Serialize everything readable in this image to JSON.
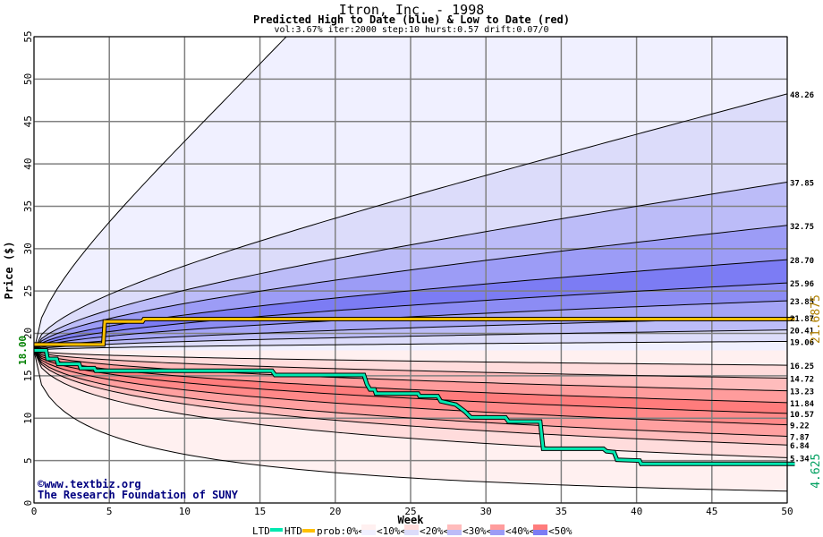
{
  "chart_data": {
    "type": "area",
    "title": "Itron, Inc. - 1998",
    "subtitle": "Predicted High to Date (blue) &  Low to Date (red)",
    "params": "vol:3.67% iter:2000 step:10 hurst:0.57 drift:0.07/0",
    "xlabel": "Week",
    "ylabel": "Price ($)",
    "xlim": [
      0,
      50.5
    ],
    "ylim": [
      0,
      55
    ],
    "xticks": [
      "0",
      "5",
      "10",
      "15",
      "20",
      "25",
      "30",
      "35",
      "40",
      "45",
      "50"
    ],
    "yticks": [
      "0",
      "5",
      "10",
      "15",
      "20",
      "25",
      "30",
      "35",
      "40",
      "45",
      "50",
      "55"
    ],
    "start_price": "18.00",
    "upper_band_end_values": [
      48.26,
      37.85,
      32.75,
      28.7,
      25.96,
      23.85,
      21.87,
      20.41,
      19.06
    ],
    "upper_band_labels": [
      "48.26",
      "37.85",
      "32.75",
      "28.70",
      "25.96",
      "23.85",
      "21.87",
      "20.41",
      "19.06"
    ],
    "lower_band_end_values": [
      16.25,
      14.72,
      13.23,
      11.84,
      10.57,
      9.22,
      7.87,
      6.84,
      5.34
    ],
    "lower_band_labels": [
      "16.25",
      "14.72",
      "13.23",
      "11.84",
      "10.57",
      "9.22",
      "7.87",
      "6.84",
      "5.34"
    ],
    "htd": {
      "label": "HTD",
      "final": "21.6875",
      "color": "#ffc000",
      "points": [
        [
          0,
          18.7
        ],
        [
          4.6,
          18.7
        ],
        [
          4.7,
          21.4
        ],
        [
          7.2,
          21.4
        ],
        [
          7.3,
          21.6875
        ],
        [
          50.5,
          21.6875
        ]
      ]
    },
    "ltd": {
      "label": "LTD",
      "final": "4.625",
      "color": "#00e8b0",
      "points": [
        [
          0,
          18
        ],
        [
          0.8,
          18
        ],
        [
          0.9,
          17
        ],
        [
          1.5,
          17
        ],
        [
          1.6,
          16.4
        ],
        [
          3,
          16.4
        ],
        [
          3.1,
          15.9
        ],
        [
          4,
          15.9
        ],
        [
          4.1,
          15.6
        ],
        [
          15.8,
          15.6
        ],
        [
          16,
          15.1
        ],
        [
          21.9,
          15.1
        ],
        [
          22.1,
          14
        ],
        [
          22.3,
          13.4
        ],
        [
          22.6,
          13.4
        ],
        [
          22.7,
          12.9
        ],
        [
          25.5,
          12.9
        ],
        [
          25.6,
          12.6
        ],
        [
          26.8,
          12.6
        ],
        [
          27,
          12
        ],
        [
          28,
          11.6
        ],
        [
          28.6,
          10.8
        ],
        [
          29,
          10.1
        ],
        [
          31.3,
          10.1
        ],
        [
          31.5,
          9.6
        ],
        [
          33.6,
          9.6
        ],
        [
          33.8,
          6.4
        ],
        [
          37.8,
          6.4
        ],
        [
          38,
          6.1
        ],
        [
          38.5,
          6
        ],
        [
          38.7,
          5.1
        ],
        [
          40.2,
          5
        ],
        [
          40.3,
          4.625
        ],
        [
          50.5,
          4.625
        ]
      ]
    },
    "legend": {
      "ltd": "LTD",
      "htd": "HTD",
      "prob": "prob:0%<",
      "bins": [
        "<10%<",
        "<20%<",
        "<30%<",
        "<40%<",
        "<50%"
      ]
    },
    "credit": [
      "©www.textbiz.org",
      "The Research Foundation of SUNY"
    ]
  }
}
